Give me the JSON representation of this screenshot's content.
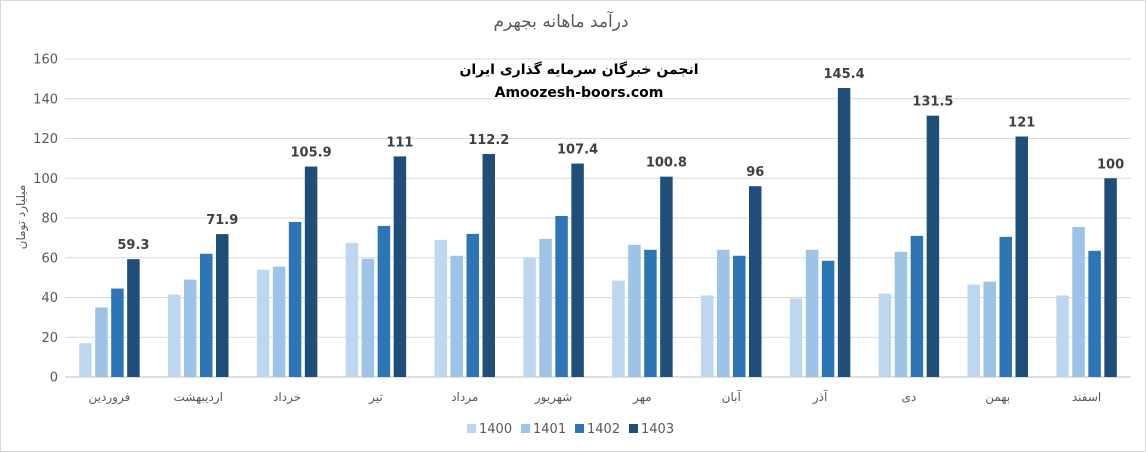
{
  "chart_data": {
    "type": "bar",
    "title": "درآمد ماهانه بجهرم",
    "annotations": [
      "انجمن خبرگان سرمایه گذاری ایران",
      "Amoozesh-boors.com"
    ],
    "ylabel": "میلیارد تومان",
    "xlabel": "",
    "ylim": [
      0,
      160
    ],
    "yticks": [
      0,
      20,
      40,
      60,
      80,
      100,
      120,
      140,
      160
    ],
    "grid": true,
    "legend": "bottom",
    "categories": [
      "فروردین",
      "اردیبهشت",
      "خرداد",
      "تیر",
      "مرداد",
      "شهریور",
      "مهر",
      "آبان",
      "آذر",
      "دی",
      "بهمن",
      "اسفند"
    ],
    "series": [
      {
        "name": "1400",
        "color": "#bdd7ee",
        "values": [
          17,
          41.5,
          54,
          67.5,
          69,
          60,
          48.5,
          41,
          39.5,
          42,
          46.5,
          41
        ]
      },
      {
        "name": "1401",
        "color": "#9dc3e6",
        "values": [
          35,
          49,
          55.5,
          59.5,
          61,
          69.5,
          66.5,
          64,
          64,
          63,
          48,
          75.5
        ]
      },
      {
        "name": "1402",
        "color": "#2e75b6",
        "values": [
          44.5,
          62,
          78,
          76,
          72,
          81,
          64,
          61,
          58.5,
          71,
          70.5,
          63.5
        ]
      },
      {
        "name": "1403",
        "color": "#1f4e79",
        "values": [
          59.3,
          71.9,
          105.9,
          111,
          112.2,
          107.4,
          100.8,
          96,
          145.4,
          131.5,
          121,
          100
        ],
        "labels": [
          "59.3",
          "71.9",
          "105.9",
          "111",
          "112.2",
          "107.4",
          "100.8",
          "96",
          "145.4",
          "131.5",
          "121",
          "100"
        ]
      }
    ]
  }
}
